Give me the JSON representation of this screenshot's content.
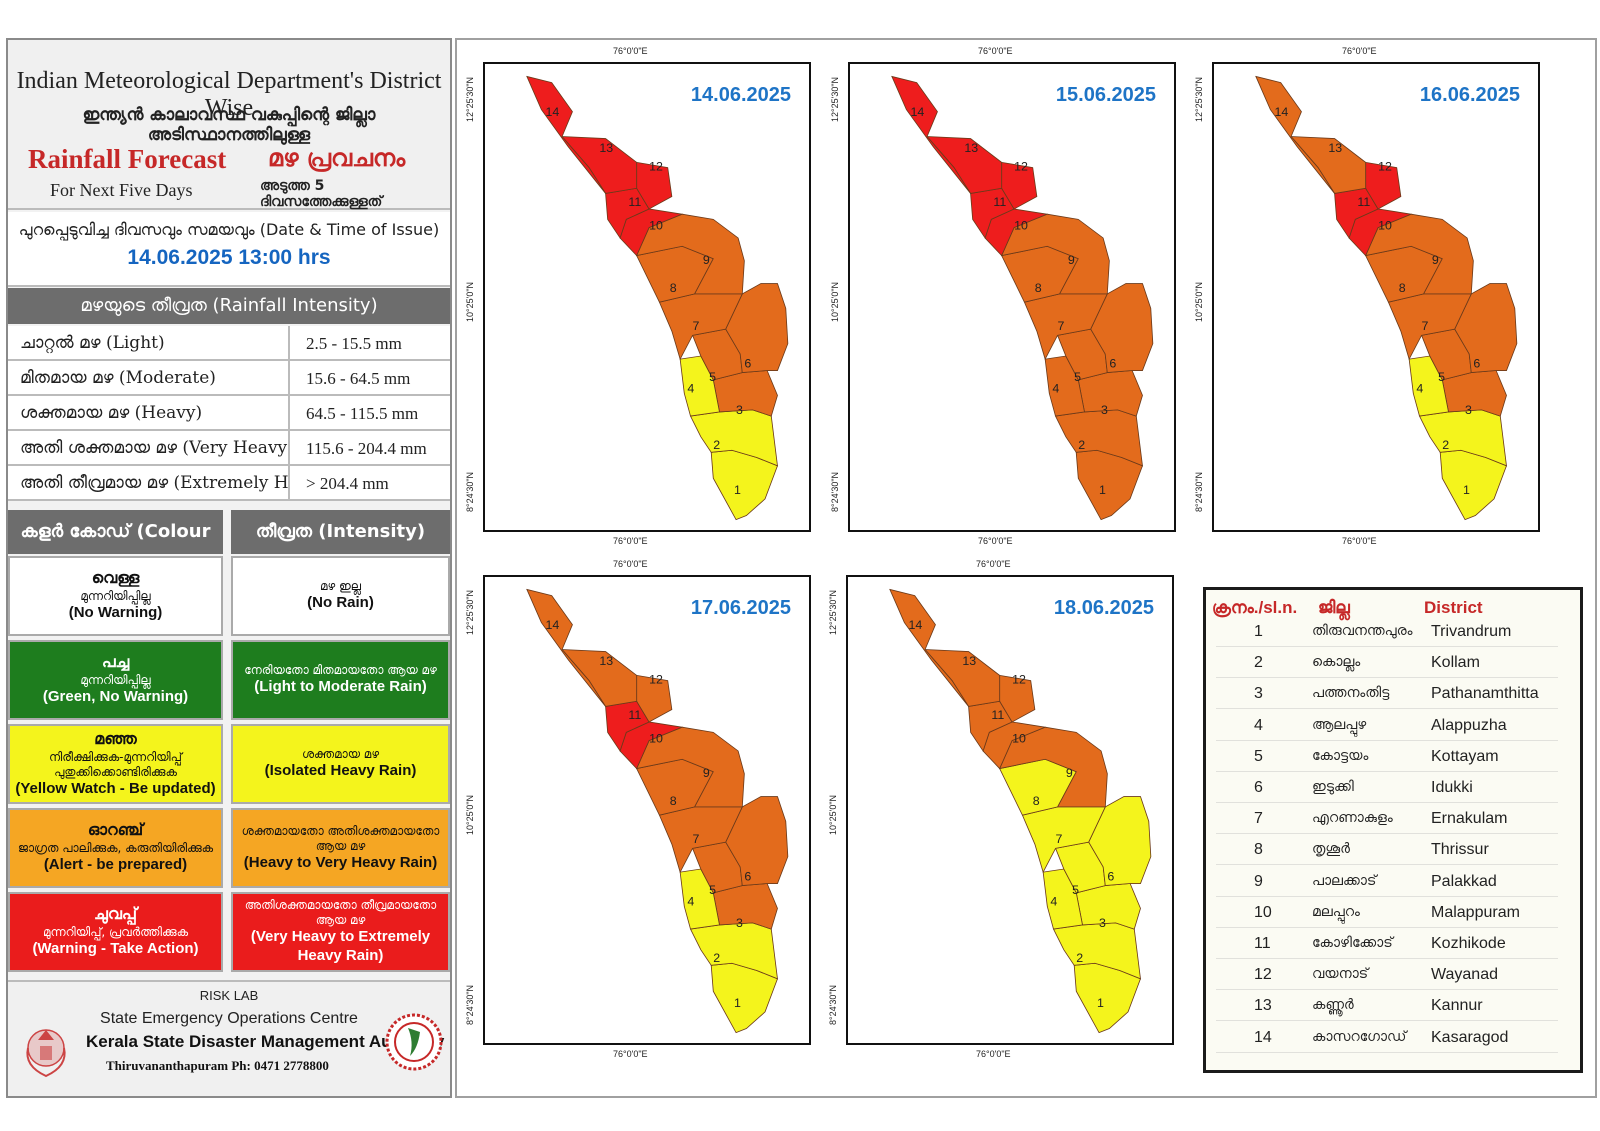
{
  "header": {
    "title_en": "Indian Meteorological Department's District Wise",
    "title_ml": "ഇന്ത്യൻ കാലാവസ്ഥ വകുപ്പിന്റെ ജില്ലാ അടിസ്ഥാനത്തിലുള്ള",
    "forecast_en": "Rainfall Forecast",
    "forecast_ml": "മഴ പ്രവചനം",
    "next_days_en": "For Next Five Days",
    "next_days_ml": "അടുത്ത 5 ദിവസത്തേക്കുള്ളത്"
  },
  "issue": {
    "label": "പുറപ്പെടുവിച്ച ദിവസവും സമയവും (Date & Time of Issue)",
    "datetime": "14.06.2025 13:00 hrs"
  },
  "intensity": {
    "title": "മഴയുടെ തീവ്രത (Rainfall Intensity)",
    "rows": [
      {
        "name": "ചാറ്റൽ മഴ (Light)",
        "range": "2.5 - 15.5 mm"
      },
      {
        "name": "മിതമായ മഴ (Moderate)",
        "range": "15.6 - 64.5 mm"
      },
      {
        "name": "ശക്തമായ മഴ (Heavy)",
        "range": "64.5 - 115.5 mm"
      },
      {
        "name": "അതി ശക്തമായ  മഴ  (Very Heavy)",
        "range": "115.6 - 204.4 mm"
      },
      {
        "name": "അതി തീവ്രമായ മഴ (Extremely Heavy)",
        "range": "> 204.4 mm"
      }
    ]
  },
  "colour_code": {
    "head_left": "കളർ കോഡ് (Colour Code)",
    "head_right": "തീവ്രത (Intensity)",
    "rows": [
      {
        "bg": "#ffffff",
        "fg": "#111111",
        "l_big": "വെള്ള",
        "l_ml": "മുന്നറിയിപ്പില്ല",
        "l_en": "(No Warning)",
        "r_ml": "മഴ ഇല്ല",
        "r_en": "(No Rain)"
      },
      {
        "bg": "#1e7d1e",
        "fg": "#ffffff",
        "l_big": "പച്ച",
        "l_ml": "മുന്നറിയിപ്പില്ല",
        "l_en": "(Green, No Warning)",
        "r_ml": "നേരിയതോ മിതമായതോ ആയ മഴ",
        "r_en": "(Light to Moderate Rain)"
      },
      {
        "bg": "#f4f41c",
        "fg": "#111111",
        "l_big": "മഞ്ഞ",
        "l_ml": "നിരീക്ഷിക്കുക-മുന്നറിയിപ്പ് പുതുക്കിക്കൊണ്ടിരിക്കുക",
        "l_en": "(Yellow Watch - Be updated)",
        "r_ml": "ശക്തമായ  മഴ",
        "r_en": "(Isolated Heavy Rain)"
      },
      {
        "bg": "#f5a623",
        "fg": "#111111",
        "l_big": "ഓറഞ്ച്",
        "l_ml": "ജാഗ്രത  പാലിക്കുക, കരുതിയിരിക്കുക",
        "l_en": "(Alert - be prepared)",
        "r_ml": "ശക്തമായതോ അതിശക്തമായതോ ആയ മഴ",
        "r_en": "(Heavy to Very Heavy Rain)"
      },
      {
        "bg": "#ea1c1c",
        "fg": "#ffffff",
        "l_big": "ചുവപ്പ്",
        "l_ml": "മുന്നറിയിപ്പ്, പ്രവർത്തിക്കുക",
        "l_en": "(Warning - Take Action)",
        "r_ml": "അതിശക്തമായതോ തീവ്രമായതോ ആയ മഴ",
        "r_en": "(Very Heavy to Extremely Heavy Rain)"
      }
    ]
  },
  "footer": {
    "risk_lab": "RISK LAB",
    "seoc": "State Emergency Operations Centre",
    "ksdma": "Kerala State Disaster Management Authority",
    "phone": "Thiruvananthapuram Ph: 0471 2778800"
  },
  "map_labels": {
    "lon": "76°0'0\"E",
    "lat_top": "12°25'30\"N",
    "lat_mid": "10°25'0\"N",
    "lat_bot": "8°24'30\"N"
  },
  "colors": {
    "red": "#ee1d1d",
    "orange": "#e36b1c",
    "yellow": "#f4f41c"
  },
  "maps": [
    {
      "date": "14.06.2025",
      "colors": [
        "yellow",
        "yellow",
        "orange",
        "yellow",
        "orange",
        "orange",
        "orange",
        "orange",
        "orange",
        "red",
        "red",
        "red",
        "red",
        "red"
      ]
    },
    {
      "date": "15.06.2025",
      "colors": [
        "orange",
        "orange",
        "orange",
        "orange",
        "orange",
        "orange",
        "orange",
        "orange",
        "orange",
        "red",
        "red",
        "red",
        "red",
        "red"
      ]
    },
    {
      "date": "16.06.2025",
      "colors": [
        "yellow",
        "yellow",
        "orange",
        "yellow",
        "orange",
        "orange",
        "orange",
        "orange",
        "orange",
        "red",
        "red",
        "red",
        "orange",
        "orange"
      ]
    },
    {
      "date": "17.06.2025",
      "colors": [
        "yellow",
        "yellow",
        "orange",
        "yellow",
        "orange",
        "orange",
        "orange",
        "orange",
        "orange",
        "red",
        "red",
        "orange",
        "orange",
        "orange"
      ]
    },
    {
      "date": "18.06.2025",
      "colors": [
        "yellow",
        "yellow",
        "yellow",
        "yellow",
        "yellow",
        "yellow",
        "yellow",
        "yellow",
        "orange",
        "orange",
        "orange",
        "orange",
        "orange",
        "orange"
      ]
    }
  ],
  "districts_table": {
    "head_sl": "ക്രനം./sl.n.",
    "head_ml": "ജില്ല",
    "head_en": "District",
    "rows": [
      {
        "sl": "1",
        "ml": "തിരുവനന്തപുരം",
        "en": "Trivandrum"
      },
      {
        "sl": "2",
        "ml": "കൊല്ലം",
        "en": "Kollam"
      },
      {
        "sl": "3",
        "ml": "പത്തനംതിട്ട",
        "en": "Pathanamthitta"
      },
      {
        "sl": "4",
        "ml": "ആലപ്പുഴ",
        "en": "Alappuzha"
      },
      {
        "sl": "5",
        "ml": "കോട്ടയം",
        "en": "Kottayam"
      },
      {
        "sl": "6",
        "ml": "ഇടുക്കി",
        "en": "Idukki"
      },
      {
        "sl": "7",
        "ml": "എറണാകുളം",
        "en": "Ernakulam"
      },
      {
        "sl": "8",
        "ml": "തൃശൂർ",
        "en": "Thrissur"
      },
      {
        "sl": "9",
        "ml": "പാലക്കാട്",
        "en": "Palakkad"
      },
      {
        "sl": "10",
        "ml": "മലപ്പുറം",
        "en": "Malappuram"
      },
      {
        "sl": "11",
        "ml": "കോഴിക്കോട്",
        "en": "Kozhikode"
      },
      {
        "sl": "12",
        "ml": "വയനാട്",
        "en": "Wayanad"
      },
      {
        "sl": "13",
        "ml": "കണ്ണൂർ",
        "en": "Kannur"
      },
      {
        "sl": "14",
        "ml": "കാസറഗോഡ്",
        "en": "Kasaragod"
      }
    ]
  }
}
